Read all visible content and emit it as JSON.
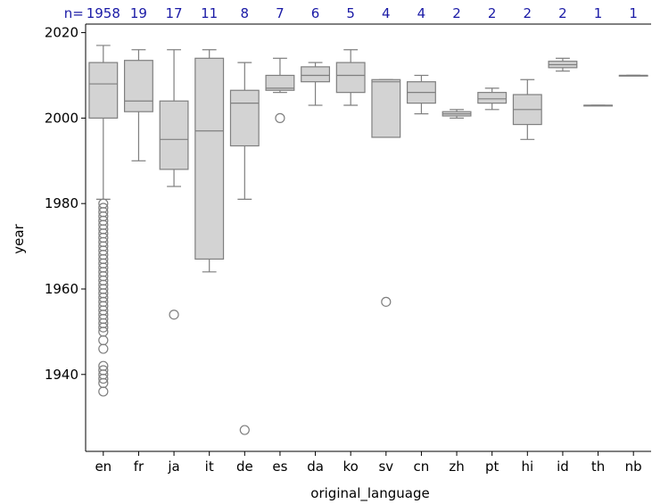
{
  "chart_data": {
    "type": "box",
    "xlabel": "original_language",
    "ylabel": "year",
    "ylim": [
      1922,
      2022
    ],
    "yticks": [
      1940,
      1960,
      1980,
      2000,
      2020
    ],
    "count_prefix": "n=",
    "colors": {
      "box_fill": "#d3d3d3",
      "box_stroke": "#7f7f7f",
      "count_text": "#1a1aa6"
    },
    "categories": [
      {
        "name": "en",
        "n": "1958",
        "q1": 2000,
        "median": 2008,
        "q3": 2013,
        "whislo": 1981,
        "whishi": 2017,
        "fliers": [
          1980,
          1979,
          1978,
          1977,
          1976,
          1975,
          1974,
          1973,
          1972,
          1971,
          1970,
          1969,
          1968,
          1967,
          1966,
          1965,
          1964,
          1963,
          1962,
          1961,
          1960,
          1959,
          1958,
          1957,
          1956,
          1955,
          1954,
          1953,
          1952,
          1951,
          1950,
          1948,
          1946,
          1942,
          1941,
          1940,
          1939,
          1938,
          1936
        ]
      },
      {
        "name": "fr",
        "n": "19",
        "q1": 2001.5,
        "median": 2004,
        "q3": 2013.5,
        "whislo": 1990,
        "whishi": 2016,
        "fliers": []
      },
      {
        "name": "ja",
        "n": "17",
        "q1": 1988,
        "median": 1995,
        "q3": 2004,
        "whislo": 1984,
        "whishi": 2016,
        "fliers": [
          1954
        ]
      },
      {
        "name": "it",
        "n": "11",
        "q1": 1967,
        "median": 1997,
        "q3": 2014,
        "whislo": 1964,
        "whishi": 2016,
        "fliers": []
      },
      {
        "name": "de",
        "n": "8",
        "q1": 1993.5,
        "median": 2003.5,
        "q3": 2006.5,
        "whislo": 1981,
        "whishi": 2013,
        "fliers": [
          1927
        ]
      },
      {
        "name": "es",
        "n": "7",
        "q1": 2006.5,
        "median": 2007,
        "q3": 2010,
        "whislo": 2006,
        "whishi": 2014,
        "fliers": [
          2000
        ]
      },
      {
        "name": "da",
        "n": "6",
        "q1": 2008.5,
        "median": 2010,
        "q3": 2012,
        "whislo": 2003,
        "whishi": 2013,
        "fliers": []
      },
      {
        "name": "ko",
        "n": "5",
        "q1": 2006,
        "median": 2010,
        "q3": 2013,
        "whislo": 2003,
        "whishi": 2016,
        "fliers": []
      },
      {
        "name": "sv",
        "n": "4",
        "q1": 1995.5,
        "median": 2008.5,
        "q3": 2009,
        "whislo": 1995.5,
        "whishi": 2009,
        "fliers": [
          1957
        ]
      },
      {
        "name": "cn",
        "n": "4",
        "q1": 2003.5,
        "median": 2006,
        "q3": 2008.5,
        "whislo": 2001,
        "whishi": 2010,
        "fliers": []
      },
      {
        "name": "zh",
        "n": "2",
        "q1": 2000.5,
        "median": 2001,
        "q3": 2001.5,
        "whislo": 2000,
        "whishi": 2002,
        "fliers": []
      },
      {
        "name": "pt",
        "n": "2",
        "q1": 2003.5,
        "median": 2004.5,
        "q3": 2006,
        "whislo": 2002,
        "whishi": 2007,
        "fliers": []
      },
      {
        "name": "hi",
        "n": "2",
        "q1": 1998.5,
        "median": 2002,
        "q3": 2005.5,
        "whislo": 1995,
        "whishi": 2009,
        "fliers": []
      },
      {
        "name": "id",
        "n": "2",
        "q1": 2011.8,
        "median": 2012.5,
        "q3": 2013.3,
        "whislo": 2011,
        "whishi": 2014,
        "fliers": []
      },
      {
        "name": "th",
        "n": "1",
        "q1": 2003,
        "median": 2003,
        "q3": 2003,
        "whislo": 2003,
        "whishi": 2003,
        "fliers": []
      },
      {
        "name": "nb",
        "n": "1",
        "q1": 2010,
        "median": 2010,
        "q3": 2010,
        "whislo": 2010,
        "whishi": 2010,
        "fliers": []
      }
    ]
  }
}
